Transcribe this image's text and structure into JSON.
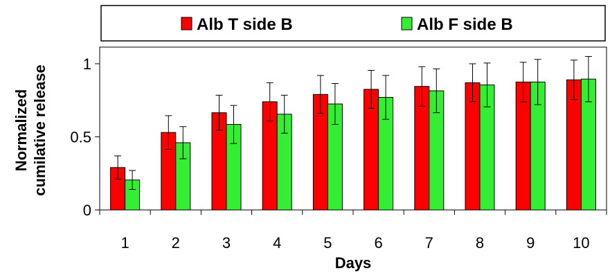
{
  "chart_data": {
    "type": "bar",
    "title": "",
    "xlabel": "Days",
    "ylabel_lines": [
      "Normalized",
      "cumilative release"
    ],
    "categories": [
      "1",
      "2",
      "3",
      "4",
      "5",
      "6",
      "7",
      "8",
      "9",
      "10"
    ],
    "ylim": [
      0,
      1.1
    ],
    "yticks": [
      {
        "value": 0,
        "label": "0"
      },
      {
        "value": 0.5,
        "label": "0.5"
      },
      {
        "value": 1,
        "label": "1"
      }
    ],
    "grid": false,
    "legend_position": "top",
    "series": [
      {
        "name": "Alb T side B",
        "color": "#ff0000",
        "values": [
          0.29,
          0.53,
          0.665,
          0.74,
          0.79,
          0.825,
          0.845,
          0.87,
          0.875,
          0.89
        ],
        "errors": [
          0.08,
          0.115,
          0.12,
          0.13,
          0.13,
          0.13,
          0.135,
          0.13,
          0.135,
          0.135
        ]
      },
      {
        "name": "Alb F side B",
        "color": "#33ee33",
        "values": [
          0.205,
          0.46,
          0.585,
          0.655,
          0.725,
          0.77,
          0.815,
          0.855,
          0.875,
          0.895
        ],
        "errors": [
          0.065,
          0.11,
          0.13,
          0.13,
          0.14,
          0.15,
          0.15,
          0.15,
          0.155,
          0.155
        ]
      }
    ]
  }
}
